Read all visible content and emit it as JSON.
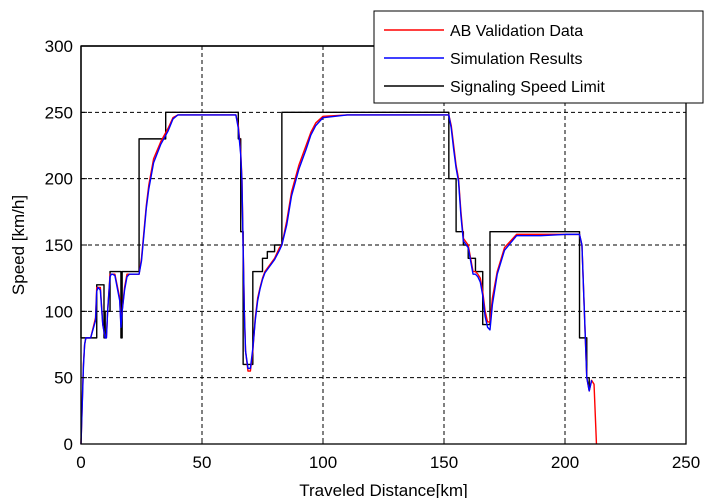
{
  "chart_data": {
    "type": "line",
    "title": "",
    "xlabel": "Traveled Distance[km]",
    "ylabel": "Speed [km/h]",
    "xlim": [
      0,
      250
    ],
    "ylim": [
      0,
      300
    ],
    "x_ticks": [
      "0",
      "50",
      "100",
      "150",
      "200",
      "250"
    ],
    "y_ticks": [
      "0",
      "50",
      "100",
      "150",
      "200",
      "250",
      "300"
    ],
    "grid": true,
    "grid_style": "dashed",
    "legend_position": "top-right",
    "series": [
      {
        "name": "AB Validation Data",
        "color": "#ff0000",
        "x": [
          0,
          1,
          1.5,
          2,
          4,
          6,
          6.5,
          7,
          8,
          9,
          10,
          10.5,
          11,
          12,
          12.5,
          13,
          14,
          16,
          16.5,
          17,
          18,
          19,
          20,
          22,
          24,
          25,
          26,
          27,
          28,
          30,
          33,
          36,
          38,
          40,
          45,
          50,
          55,
          60,
          64,
          65,
          66,
          66.5,
          67,
          67.5,
          68,
          69,
          70,
          71,
          72,
          73,
          74,
          75,
          76,
          78,
          80,
          82,
          83,
          85,
          87,
          90,
          93,
          95,
          97,
          100,
          110,
          120,
          130,
          140,
          150,
          152,
          153,
          154,
          155,
          156,
          157,
          158,
          160,
          161,
          162,
          163,
          164,
          165,
          166,
          167,
          168,
          169,
          170,
          172,
          175,
          180,
          190,
          200,
          205,
          206,
          207,
          208,
          209,
          210,
          211,
          212,
          213
        ],
        "y": [
          0,
          60,
          75,
          80,
          80,
          95,
          118,
          118,
          118,
          90,
          80,
          80,
          100,
          128,
          128,
          128,
          128,
          110,
          90,
          100,
          118,
          128,
          128,
          128,
          128,
          140,
          160,
          180,
          195,
          215,
          228,
          238,
          246,
          248,
          248,
          248,
          248,
          248,
          248,
          240,
          220,
          200,
          150,
          100,
          70,
          55,
          55,
          70,
          95,
          110,
          118,
          125,
          130,
          135,
          140,
          148,
          150,
          168,
          190,
          210,
          225,
          235,
          242,
          247,
          248,
          248,
          248,
          248,
          248,
          248,
          240,
          225,
          210,
          200,
          175,
          155,
          150,
          140,
          130,
          130,
          128,
          125,
          115,
          100,
          92,
          92,
          110,
          130,
          148,
          158,
          158,
          158,
          158,
          158,
          150,
          100,
          50,
          40,
          48,
          45,
          0
        ]
      },
      {
        "name": "Simulation Results",
        "color": "#0000ff",
        "x": [
          0,
          1,
          1.5,
          2,
          4,
          6,
          6.5,
          7,
          8,
          9,
          10,
          10.5,
          11,
          12,
          12.5,
          13,
          14,
          16,
          16.5,
          17,
          18,
          19,
          20,
          22,
          24,
          25,
          26,
          27,
          28,
          30,
          33,
          36,
          38,
          40,
          45,
          50,
          55,
          60,
          64,
          65,
          66,
          66.5,
          67,
          67.5,
          68,
          69,
          70,
          71,
          72,
          73,
          74,
          75,
          76,
          78,
          80,
          82,
          83,
          85,
          87,
          90,
          93,
          95,
          97,
          100,
          110,
          120,
          130,
          140,
          150,
          152,
          153,
          154,
          155,
          156,
          157,
          158,
          160,
          161,
          162,
          163,
          164,
          165,
          166,
          167,
          168,
          169,
          170,
          172,
          175,
          180,
          190,
          200,
          205,
          206,
          207,
          208,
          209,
          210,
          211
        ],
        "y": [
          0,
          58,
          75,
          80,
          80,
          93,
          115,
          118,
          116,
          90,
          80,
          80,
          100,
          126,
          128,
          128,
          127,
          108,
          88,
          100,
          116,
          126,
          128,
          128,
          128,
          138,
          158,
          178,
          192,
          212,
          226,
          236,
          245,
          248,
          248,
          248,
          248,
          248,
          248,
          238,
          218,
          198,
          148,
          98,
          70,
          57,
          57,
          72,
          93,
          108,
          117,
          124,
          129,
          134,
          139,
          146,
          150,
          165,
          187,
          207,
          222,
          233,
          240,
          246,
          248,
          248,
          248,
          248,
          248,
          248,
          238,
          222,
          208,
          198,
          172,
          153,
          148,
          138,
          128,
          128,
          126,
          122,
          112,
          96,
          88,
          86,
          105,
          128,
          146,
          157,
          157,
          158,
          158,
          158,
          150,
          100,
          50,
          40,
          48
        ]
      },
      {
        "name": "Signaling Speed Limit",
        "color": "#000000",
        "x": [
          0,
          0,
          6.5,
          6.5,
          9.5,
          9.5,
          10,
          10,
          12,
          12,
          16.5,
          16.5,
          17,
          17,
          24,
          24,
          35,
          35,
          65,
          65,
          66,
          66,
          67,
          67,
          71,
          71,
          75,
          75,
          77,
          77,
          80,
          80,
          83,
          83,
          152,
          152,
          155,
          155,
          158,
          158,
          160,
          160,
          163,
          163,
          166,
          166,
          169,
          169,
          206,
          206,
          209,
          209,
          210,
          210
        ],
        "y": [
          300,
          80,
          80,
          120,
          120,
          80,
          80,
          100,
          100,
          130,
          130,
          80,
          80,
          130,
          130,
          230,
          230,
          250,
          250,
          230,
          230,
          160,
          160,
          60,
          60,
          130,
          130,
          140,
          140,
          145,
          145,
          150,
          150,
          250,
          250,
          200,
          200,
          160,
          160,
          150,
          150,
          140,
          140,
          130,
          130,
          90,
          90,
          160,
          160,
          80,
          80,
          50,
          50,
          40
        ]
      }
    ],
    "extra_lines": [
      {
        "name": "speed-limit-top",
        "x": [
          0,
          250
        ],
        "y": [
          300,
          300
        ],
        "color": "#000000"
      }
    ]
  }
}
